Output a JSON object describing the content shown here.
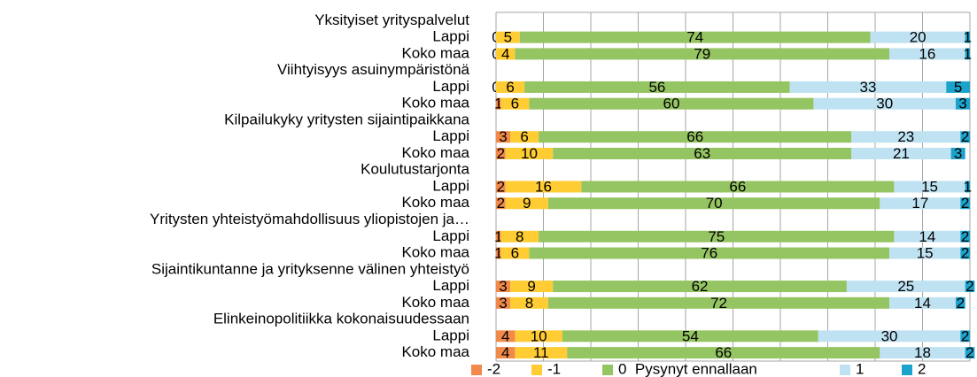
{
  "chart_data": {
    "type": "stacked-barh",
    "categories": [
      "Yksityiset yrityspalvelut",
      "Lappi",
      "Koko maa",
      "Viihtyisyys asuinympäristönä",
      "Lappi",
      "Koko maa",
      "Kilpailukyky yritysten sijaintipaikkana",
      "Lappi",
      "Koko maa",
      "Koulutustarjonta",
      "Lappi",
      "Koko maa",
      "Yritysten yhteistyömahdollisuus yliopistojen ja…",
      "Lappi",
      "Koko maa",
      "Sijaintikuntanne ja yrityksenne välinen yhteistyö",
      "Lappi",
      "Koko maa",
      "Elinkeinopolitiikka kokonaisuudessaan",
      "Lappi",
      "Koko maa"
    ],
    "series": [
      {
        "name": "-2",
        "color": "#f0894a",
        "values": [
          null,
          0,
          0,
          null,
          0,
          1,
          null,
          3,
          2,
          null,
          2,
          2,
          null,
          1,
          1,
          null,
          3,
          3,
          null,
          4,
          4
        ]
      },
      {
        "name": "-1",
        "color": "#ffcc33",
        "values": [
          null,
          5,
          4,
          null,
          6,
          6,
          null,
          6,
          10,
          null,
          16,
          9,
          null,
          8,
          6,
          null,
          9,
          8,
          null,
          10,
          11
        ]
      },
      {
        "name": "0  Pysynyt ennallaan",
        "color": "#95c462",
        "values": [
          null,
          74,
          79,
          null,
          56,
          60,
          null,
          66,
          63,
          null,
          66,
          70,
          null,
          75,
          76,
          null,
          62,
          72,
          null,
          54,
          66
        ]
      },
      {
        "name": "1",
        "color": "#bfe2f2",
        "values": [
          null,
          20,
          16,
          null,
          33,
          30,
          null,
          23,
          21,
          null,
          15,
          17,
          null,
          14,
          15,
          null,
          25,
          14,
          null,
          30,
          18
        ]
      },
      {
        "name": "2",
        "color": "#1ca3cc",
        "values": [
          null,
          1,
          1,
          null,
          5,
          3,
          null,
          2,
          3,
          null,
          1,
          2,
          null,
          2,
          2,
          null,
          2,
          2,
          null,
          2,
          2
        ]
      }
    ],
    "xlim": [
      0,
      100
    ],
    "xticks": [
      0,
      10,
      20,
      30,
      40,
      50,
      60,
      70,
      80,
      90,
      100
    ],
    "grid": true
  }
}
